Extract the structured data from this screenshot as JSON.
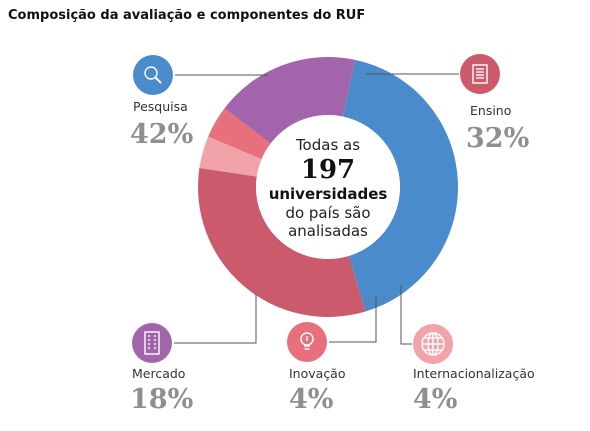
{
  "title": "Composição da avaliação e componentes do RUF",
  "center": {
    "line1": "Todas as",
    "number": "197",
    "line3": "universidades",
    "line4": "do país são",
    "line5": "analisadas"
  },
  "chart_data": {
    "type": "pie",
    "donut": true,
    "title": "Composição da avaliação e componentes do RUF",
    "categories": [
      "Pesquisa",
      "Ensino",
      "Internacionalização",
      "Inovação",
      "Mercado"
    ],
    "values": [
      42,
      32,
      4,
      4,
      18
    ],
    "value_labels": [
      "42%",
      "32%",
      "4%",
      "4%",
      "18%"
    ],
    "colors": [
      "#4a8bcc",
      "#cb5a6c",
      "#f2a3aa",
      "#e8707c",
      "#a264aa"
    ],
    "icons": [
      "search-icon",
      "document-icon",
      "globe-icon",
      "lightbulb-icon",
      "building-icon"
    ]
  }
}
